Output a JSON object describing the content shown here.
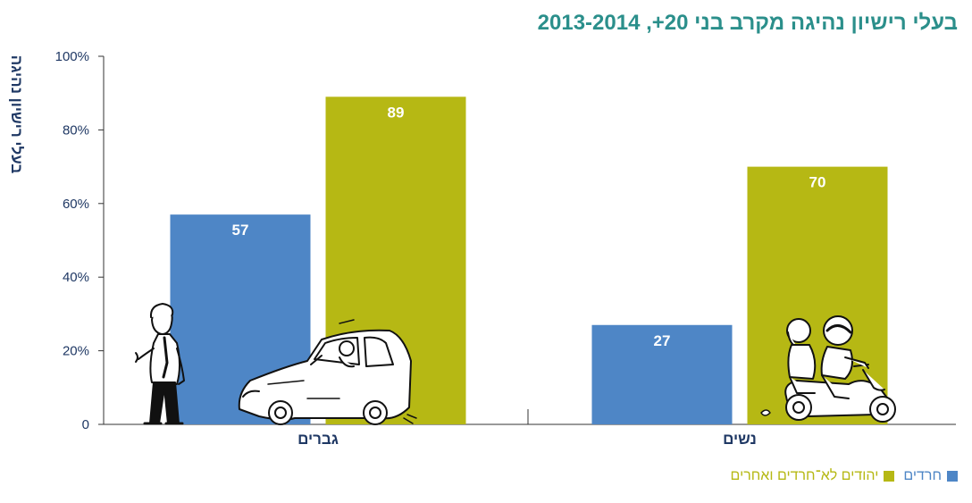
{
  "chart_data": {
    "type": "bar",
    "title": "בעלי רישיון נהיגה מקרב בני 20+, 2013-2014",
    "ylabel": "בעלי רישיון נהיגה",
    "xlabel": "",
    "categories": [
      "גברים",
      "נשים"
    ],
    "series": [
      {
        "name": "חרדים",
        "color": "#4e86c6",
        "values": [
          57,
          27
        ]
      },
      {
        "name": "יהודים לא־חרדים ואחרים",
        "color": "#b6b814",
        "values": [
          89,
          70
        ]
      }
    ],
    "ylim": [
      0,
      100
    ],
    "yticks": [
      "0",
      "20%",
      "40%",
      "60%",
      "80%",
      "100%"
    ],
    "grid": false,
    "legend_position": "bottom-right",
    "illustrations": [
      "man-icon",
      "car-with-driver-icon",
      "scooter-with-two-women-icon"
    ]
  }
}
